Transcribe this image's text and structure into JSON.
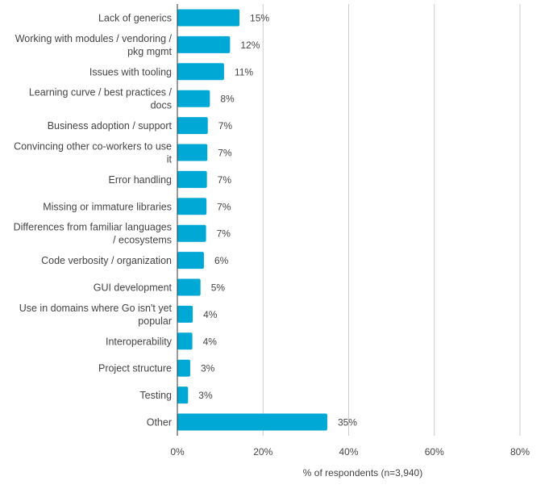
{
  "chart_data": {
    "type": "bar",
    "orientation": "horizontal",
    "categories": [
      [
        "Lack of generics"
      ],
      [
        "Working with modules / vendoring /",
        "pkg mgmt"
      ],
      [
        "Issues with tooling"
      ],
      [
        "Learning curve / best practices /",
        "docs"
      ],
      [
        "Business adoption / support"
      ],
      [
        "Convincing other co-workers to use",
        "it"
      ],
      [
        "Error handling"
      ],
      [
        "Missing or immature libraries"
      ],
      [
        "Differences from familiar languages",
        "/ ecosystems"
      ],
      [
        "Code verbosity / organization"
      ],
      [
        "GUI development"
      ],
      [
        "Use in domains where Go isn't yet",
        "popular"
      ],
      [
        "Interoperability"
      ],
      [
        "Project structure"
      ],
      [
        "Testing"
      ],
      [
        "Other"
      ]
    ],
    "values": [
      15,
      12,
      11,
      8,
      7,
      7,
      7,
      7,
      7,
      6,
      5,
      4,
      4,
      3,
      3,
      35
    ],
    "bar_values": [
      14.5,
      12.3,
      10.9,
      7.6,
      7.1,
      7.0,
      6.9,
      6.8,
      6.7,
      6.2,
      5.4,
      3.6,
      3.5,
      3.0,
      2.5,
      35.0
    ],
    "value_labels": [
      "15%",
      "12%",
      "11%",
      "8%",
      "7%",
      "7%",
      "7%",
      "7%",
      "7%",
      "6%",
      "5%",
      "4%",
      "4%",
      "3%",
      "3%",
      "35%"
    ],
    "xlim": [
      0,
      80
    ],
    "xticks": [
      0,
      20,
      40,
      60,
      80
    ],
    "xtick_labels": [
      "0%",
      "20%",
      "40%",
      "60%",
      "80%"
    ],
    "xlabel": "% of respondents (n=3,940)",
    "ylabel": "",
    "title": "",
    "grid": true,
    "bar_color": "#00a8d6",
    "grid_color": "#cccccc",
    "text_color": "#444444"
  }
}
